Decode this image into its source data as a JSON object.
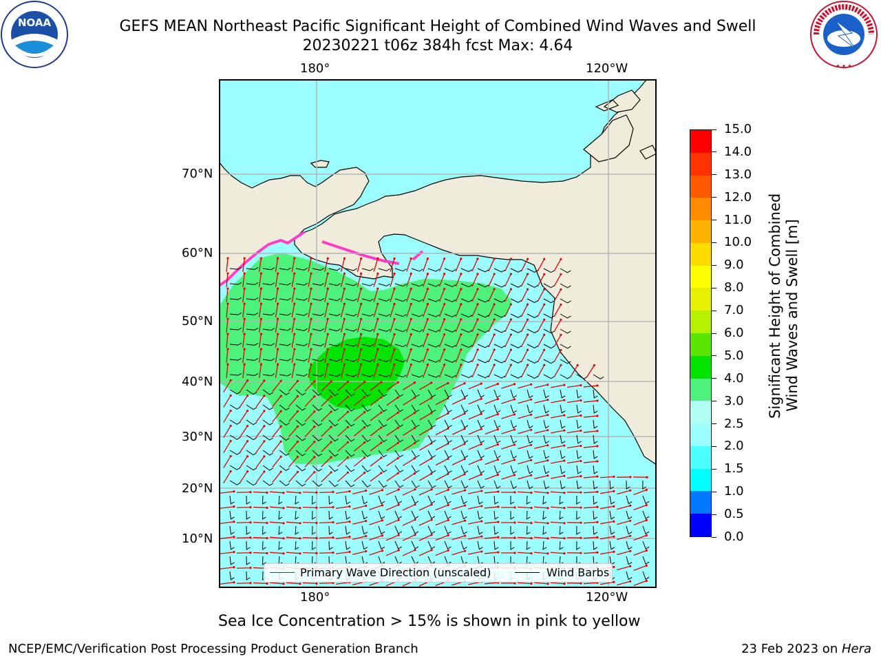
{
  "header": {
    "title_line1": "GEFS MEAN Northeast Pacific Significant Height of Combined Wind Waves and Swell",
    "title_line2": "20230221 t06z 384h fcst   Max: 4.64"
  },
  "logos": {
    "left_name": "noaa-logo",
    "left_text": "NOAA",
    "right_name": "national-weather-service-logo",
    "right_text": "NATIONAL WEATHER SERVICE"
  },
  "map": {
    "lon_labels_top": [
      "180°",
      "120°W"
    ],
    "lon_labels_bottom": [
      "180°",
      "120°W"
    ],
    "lat_labels": [
      "70°N",
      "60°N",
      "50°N",
      "40°N",
      "30°N",
      "20°N",
      "10°N"
    ],
    "colors": {
      "land": "#efecdc",
      "ocean_low": "#9bfdfd",
      "wave_3_4": "#4cf27a",
      "wave_4_5": "#00e400",
      "ice_pink": "#ff3cc8",
      "grid": "#b4b4b4",
      "wave_arrow": "#e60000",
      "barb": "#000000"
    }
  },
  "legend": {
    "wave_direction_label": "Primary Wave Direction (unscaled)",
    "wind_barbs_label": "Wind Barbs"
  },
  "colorbar": {
    "title_line1": "Significant Height of Combined",
    "title_line2": "Wind Waves and Swell [m]",
    "ticks": [
      "0.0",
      "0.5",
      "1.0",
      "1.5",
      "2.0",
      "2.5",
      "3.0",
      "4.0",
      "5.0",
      "6.0",
      "7.0",
      "8.0",
      "9.0",
      "10.0",
      "11.0",
      "12.0",
      "13.0",
      "14.0",
      "15.0"
    ],
    "colors": [
      "#0000ff",
      "#0078ff",
      "#00ffff",
      "#4cffff",
      "#9bfdfd",
      "#b0fff4",
      "#4cf27a",
      "#00e400",
      "#5ae600",
      "#b4f000",
      "#e6f000",
      "#ffff00",
      "#ffdc00",
      "#ffb400",
      "#ff8c00",
      "#ff5a00",
      "#ff3200",
      "#ff0000"
    ]
  },
  "caption": "Sea Ice Concentration > 15% is shown in pink to yellow",
  "footer": {
    "left": "NCEP/EMC/Verification Post Processing Product Generation Branch",
    "date": "23 Feb 2023 on ",
    "host": "Hera"
  }
}
